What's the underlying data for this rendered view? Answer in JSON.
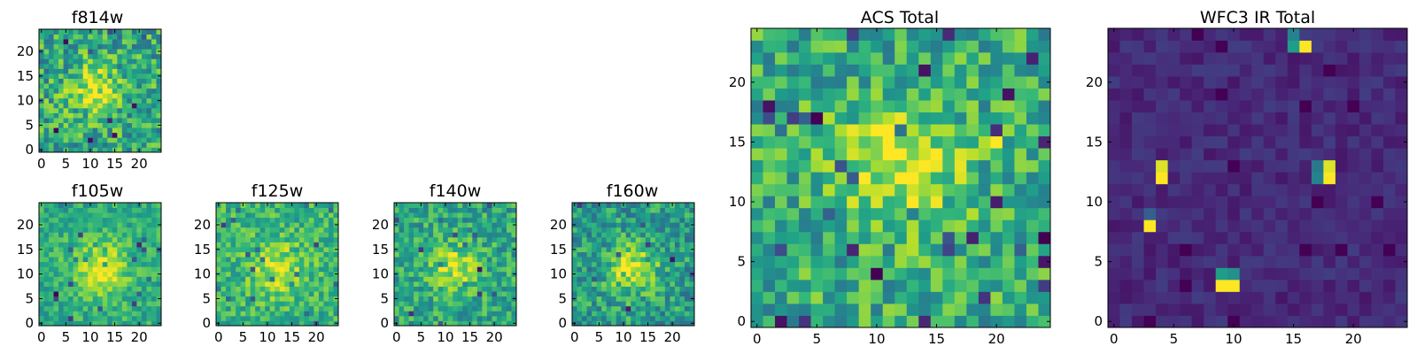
{
  "chart_data": [
    {
      "id": "f814w",
      "type": "heatmap",
      "title": "f814w",
      "grid_size": 25,
      "colormap": "viridis",
      "xticks": [
        0,
        5,
        10,
        15,
        20
      ],
      "yticks": [
        0,
        5,
        10,
        15,
        20
      ],
      "pattern": {
        "seed": 11,
        "base": 0.6,
        "noise": 0.5,
        "blob": {
          "cx": 11,
          "cy": 12,
          "amp": 0.35,
          "sigma": 3.5
        },
        "hotspots": []
      }
    },
    {
      "id": "f105w",
      "type": "heatmap",
      "title": "f105w",
      "grid_size": 25,
      "colormap": "viridis",
      "xticks": [
        0,
        5,
        10,
        15,
        20
      ],
      "yticks": [
        0,
        5,
        10,
        15,
        20
      ],
      "pattern": {
        "seed": 23,
        "base": 0.62,
        "noise": 0.3,
        "blob": {
          "cx": 12,
          "cy": 11,
          "amp": 0.35,
          "sigma": 4
        },
        "hotspots": [
          {
            "x": 3,
            "y": 6,
            "v": 0.0
          },
          {
            "x": 20,
            "y": 16,
            "v": 0.1
          }
        ]
      }
    },
    {
      "id": "f125w",
      "type": "heatmap",
      "title": "f125w",
      "grid_size": 25,
      "colormap": "viridis",
      "xticks": [
        0,
        5,
        10,
        15,
        20
      ],
      "yticks": [
        0,
        5,
        10,
        15,
        20
      ],
      "pattern": {
        "seed": 37,
        "base": 0.65,
        "noise": 0.35,
        "blob": {
          "cx": 12,
          "cy": 11,
          "amp": 0.25,
          "sigma": 4
        },
        "hotspots": []
      }
    },
    {
      "id": "f140w",
      "type": "heatmap",
      "title": "f140w",
      "grid_size": 25,
      "colormap": "viridis",
      "xticks": [
        0,
        5,
        10,
        15,
        20
      ],
      "yticks": [
        0,
        5,
        10,
        15,
        20
      ],
      "pattern": {
        "seed": 41,
        "base": 0.6,
        "noise": 0.38,
        "blob": {
          "cx": 12,
          "cy": 11,
          "amp": 0.3,
          "sigma": 3.5
        },
        "hotspots": [
          {
            "x": 17,
            "y": 11,
            "v": 0.05
          }
        ]
      }
    },
    {
      "id": "f160w",
      "type": "heatmap",
      "title": "f160w",
      "grid_size": 25,
      "colormap": "viridis",
      "xticks": [
        0,
        5,
        10,
        15,
        20
      ],
      "yticks": [
        0,
        5,
        10,
        15,
        20
      ],
      "pattern": {
        "seed": 53,
        "base": 0.55,
        "noise": 0.42,
        "blob": {
          "cx": 12,
          "cy": 11,
          "amp": 0.4,
          "sigma": 3.5
        },
        "hotspots": []
      }
    },
    {
      "id": "acs_total",
      "type": "heatmap",
      "title": "ACS Total",
      "grid_size": 25,
      "colormap": "viridis",
      "xticks": [
        0,
        5,
        10,
        15,
        20
      ],
      "yticks": [
        0,
        5,
        10,
        15,
        20
      ],
      "pattern": {
        "seed": 67,
        "base": 0.62,
        "noise": 0.45,
        "blob": {
          "cx": 12,
          "cy": 13,
          "amp": 0.35,
          "sigma": 3.5
        },
        "hotspots": [
          {
            "x": 5,
            "y": 17,
            "v": 0.0
          },
          {
            "x": 14,
            "y": 21,
            "v": 0.05
          },
          {
            "x": 21,
            "y": 19,
            "v": 0.05
          },
          {
            "x": 10,
            "y": 4,
            "v": 0.0
          },
          {
            "x": 8,
            "y": 6,
            "v": 0.1
          },
          {
            "x": 2,
            "y": 0,
            "v": 0.05
          },
          {
            "x": 20,
            "y": 15,
            "v": 1.0
          },
          {
            "x": 24,
            "y": 15,
            "v": 0.1
          },
          {
            "x": 24,
            "y": 7,
            "v": 0.0
          }
        ]
      }
    },
    {
      "id": "wfc3_ir_total",
      "type": "heatmap",
      "title": "WFC3 IR Total",
      "grid_size": 25,
      "colormap": "viridis",
      "xticks": [
        0,
        5,
        10,
        15,
        20
      ],
      "yticks": [
        0,
        5,
        10,
        15,
        20
      ],
      "pattern": {
        "seed": 79,
        "base": 0.12,
        "noise": 0.12,
        "blob": {
          "cx": 12,
          "cy": 12,
          "amp": 0.0,
          "sigma": 4
        },
        "hotspots": [
          {
            "x": 16,
            "y": 23,
            "v": 1.0
          },
          {
            "x": 15,
            "y": 23,
            "v": 0.55
          },
          {
            "x": 15,
            "y": 24,
            "v": 0.45
          },
          {
            "x": 4,
            "y": 12,
            "v": 1.0
          },
          {
            "x": 4,
            "y": 13,
            "v": 0.95
          },
          {
            "x": 18,
            "y": 12,
            "v": 1.0
          },
          {
            "x": 18,
            "y": 13,
            "v": 0.95
          },
          {
            "x": 17,
            "y": 12,
            "v": 0.45
          },
          {
            "x": 17,
            "y": 13,
            "v": 0.4
          },
          {
            "x": 3,
            "y": 8,
            "v": 1.0
          },
          {
            "x": 3,
            "y": 9,
            "v": 0.3
          },
          {
            "x": 9,
            "y": 3,
            "v": 1.0
          },
          {
            "x": 10,
            "y": 3,
            "v": 1.0
          },
          {
            "x": 9,
            "y": 4,
            "v": 0.55
          },
          {
            "x": 10,
            "y": 4,
            "v": 0.5
          }
        ]
      }
    }
  ]
}
